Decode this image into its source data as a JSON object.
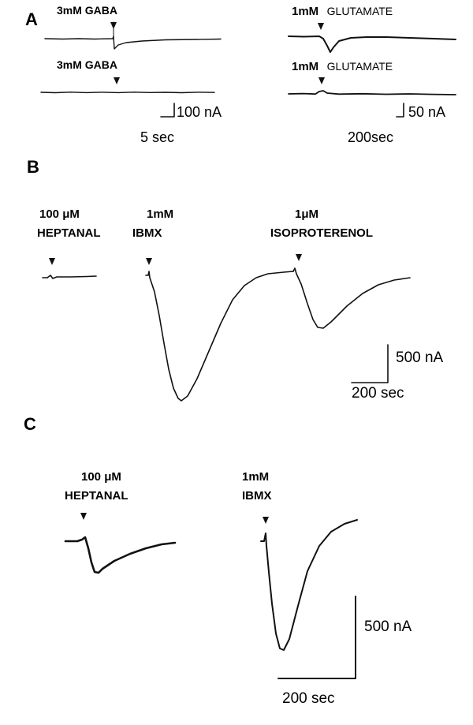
{
  "panels": {
    "A": {
      "letter": "A",
      "gaba_top": {
        "conc": "3mM",
        "drug": "GABA"
      },
      "gaba_bottom": {
        "conc": "3mM",
        "drug": "GABA"
      },
      "glut_top": {
        "conc": "1mM",
        "drug": "GLUTAMATE"
      },
      "glut_bottom": {
        "conc": "1mM",
        "drug": "GLUTAMATE"
      },
      "scale_left": {
        "current": "100 nA",
        "time": "5 sec"
      },
      "scale_right": {
        "current": "50 nA",
        "time_value": "200",
        "time_unit": "sec"
      }
    },
    "B": {
      "letter": "B",
      "heptanal": {
        "conc": "100 μM",
        "drug": "HEPTANAL"
      },
      "ibmx": {
        "conc": "1mM",
        "drug": "IBMX"
      },
      "isoproterenol": {
        "conc": "1μM",
        "drug": "ISOPROTERENOL"
      },
      "scale": {
        "current": "500 nA",
        "time": "200 sec"
      }
    },
    "C": {
      "letter": "C",
      "heptanal": {
        "conc": "100 μM",
        "drug": "HEPTANAL"
      },
      "ibmx": {
        "conc": "1mM",
        "drug": "IBMX"
      },
      "scale": {
        "current": "500 nA",
        "time": "200 sec"
      }
    }
  },
  "colors": {
    "trace": "#111111",
    "background": "#ffffff"
  }
}
